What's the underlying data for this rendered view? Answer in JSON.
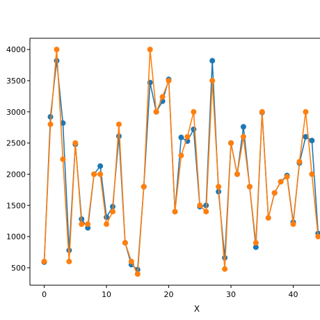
{
  "chart_data": {
    "type": "line",
    "title": "",
    "xlabel": "X",
    "ylabel": "",
    "xlim": [
      -2.3,
      44.3
    ],
    "ylim": [
      220,
      4180
    ],
    "x_ticks": [
      0,
      10,
      20,
      30,
      40
    ],
    "y_ticks": [
      500,
      1000,
      1500,
      2000,
      2500,
      3000,
      3500,
      4000
    ],
    "grid": false,
    "series": [
      {
        "color": "#1f77b4",
        "marker": "circle",
        "x": [
          0,
          1,
          2,
          3,
          4,
          5,
          6,
          7,
          8,
          9,
          10,
          11,
          12,
          13,
          14,
          15,
          16,
          17,
          18,
          19,
          20,
          21,
          22,
          23,
          24,
          25,
          26,
          27,
          28,
          29,
          30,
          31,
          32,
          33,
          34,
          35,
          36,
          37,
          38,
          39,
          40,
          41,
          42,
          43,
          44
        ],
        "y": [
          590,
          2920,
          3820,
          2820,
          780,
          2480,
          1280,
          1140,
          2000,
          2130,
          1310,
          1480,
          2610,
          900,
          550,
          470,
          1800,
          3470,
          3000,
          3170,
          3520,
          1400,
          2590,
          2530,
          2720,
          1480,
          1500,
          3820,
          1720,
          660,
          2500,
          2000,
          2760,
          1800,
          830,
          2990,
          1300,
          1700,
          1880,
          1980,
          1230,
          2180,
          2600,
          2540,
          1050
        ]
      },
      {
        "color": "#ff7f0e",
        "marker": "circle",
        "x": [
          0,
          1,
          2,
          3,
          4,
          5,
          6,
          7,
          8,
          9,
          10,
          11,
          12,
          13,
          14,
          15,
          16,
          17,
          18,
          19,
          20,
          21,
          22,
          23,
          24,
          25,
          26,
          27,
          28,
          29,
          30,
          31,
          32,
          33,
          34,
          35,
          36,
          37,
          38,
          39,
          40,
          41,
          42,
          43,
          44
        ],
        "y": [
          600,
          2800,
          4000,
          2240,
          600,
          2500,
          1200,
          1200,
          2000,
          2000,
          1200,
          1400,
          2800,
          900,
          600,
          400,
          1800,
          4000,
          3000,
          3240,
          3500,
          1400,
          2300,
          2600,
          3000,
          1500,
          1400,
          3500,
          1800,
          480,
          2500,
          2000,
          2600,
          1800,
          900,
          3000,
          1300,
          1700,
          1880,
          1960,
          1200,
          2200,
          3000,
          2000,
          1000
        ]
      }
    ]
  }
}
